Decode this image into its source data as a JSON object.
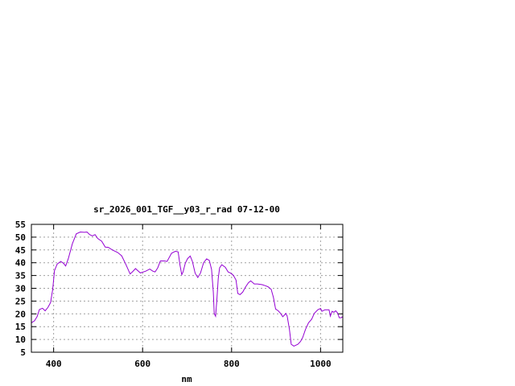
{
  "chart_data": {
    "type": "line",
    "title": "sr_2026_001_TGF__y03_r_rad 07-12-00",
    "xlabel": "nm",
    "ylabel": "",
    "xlim": [
      350,
      1050
    ],
    "ylim": [
      5,
      55
    ],
    "xticks": [
      400,
      600,
      800,
      1000
    ],
    "yticks": [
      5,
      10,
      15,
      20,
      25,
      30,
      35,
      40,
      45,
      50,
      55
    ],
    "grid": true,
    "legend": "none",
    "series": [
      {
        "color": "#9400d3",
        "x": [
          350,
          357,
          363,
          368,
          375,
          381,
          387,
          393,
          398,
          402,
          408,
          416,
          422,
          427,
          433,
          442,
          451,
          460,
          469,
          475,
          481,
          487,
          493,
          499,
          508,
          516,
          523,
          532,
          544,
          553,
          562,
          572,
          577,
          584,
          595,
          607,
          616,
          623,
          628,
          634,
          640,
          649,
          655,
          665,
          674,
          680,
          684,
          688,
          691,
          696,
          701,
          707,
          712,
          718,
          724,
          730,
          737,
          744,
          750,
          755,
          759,
          761,
          764,
          767,
          770,
          773,
          778,
          786,
          792,
          798,
          804,
          810,
          814,
          819,
          825,
          831,
          838,
          843,
          851,
          858,
          869,
          876,
          882,
          889,
          894,
          899,
          905,
          910,
          915,
          919,
          922,
          925,
          930,
          934,
          940,
          949,
          955,
          960,
          966,
          973,
          980,
          986,
          994,
          1000,
          1003,
          1010,
          1019,
          1022,
          1026,
          1030,
          1034,
          1038,
          1042,
          1046,
          1050
        ],
        "y": [
          16.5,
          17.3,
          19,
          21.7,
          22.2,
          21.2,
          22.5,
          24.4,
          29.6,
          36.9,
          39.5,
          40.5,
          39.8,
          38.7,
          41.6,
          47.4,
          51.3,
          52,
          51.9,
          52,
          51,
          50.5,
          51,
          49.5,
          48.4,
          46.1,
          46,
          45,
          44,
          42.7,
          39.5,
          35.6,
          36.4,
          37.7,
          36,
          36.7,
          37.5,
          36.7,
          36.4,
          38,
          40.7,
          40.7,
          40.5,
          43.7,
          44.5,
          44.2,
          39,
          35.3,
          36.4,
          39.8,
          41.6,
          42.6,
          40.5,
          35.9,
          34.2,
          35.9,
          40,
          41.5,
          40.9,
          37.4,
          28.5,
          20.2,
          19.1,
          25.4,
          33.8,
          38,
          39.2,
          38.2,
          36.4,
          35.9,
          35.1,
          33.2,
          28,
          27.5,
          28.5,
          30.4,
          32.2,
          32.9,
          31.7,
          31.7,
          31.4,
          31,
          30.6,
          29.6,
          26.4,
          21.9,
          21.2,
          20.2,
          18.9,
          19.6,
          20.2,
          19.1,
          13.9,
          8.1,
          7.4,
          8.1,
          9.2,
          10.8,
          13.9,
          16.5,
          17.9,
          20.2,
          21.6,
          22.1,
          21,
          21.6,
          21.6,
          19.1,
          21,
          20.6,
          21.2,
          20.4,
          18.5,
          18.5,
          18.9
        ]
      }
    ]
  }
}
